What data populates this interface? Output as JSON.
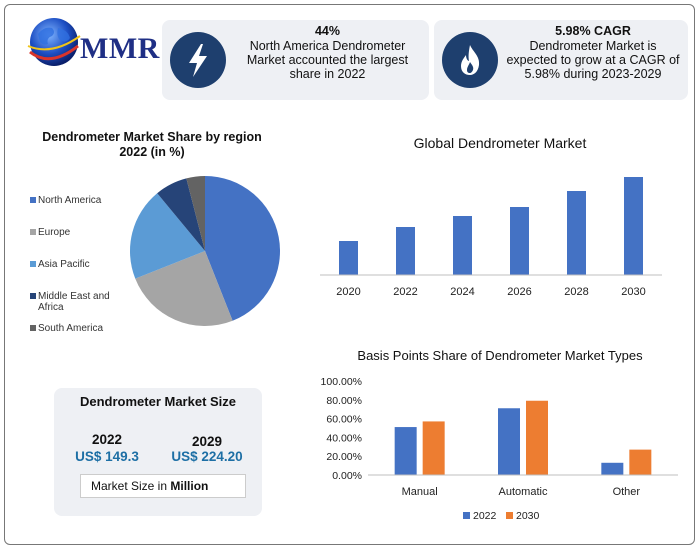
{
  "logo": {
    "text": "MMR",
    "icon": "globe-icon"
  },
  "stats": [
    {
      "icon": "lightning-bolt-icon",
      "value": "44%",
      "text": "North America Dendrometer Market accounted the largest share in 2022"
    },
    {
      "icon": "flame-icon",
      "value": "5.98% CAGR",
      "text": "Dendrometer Market is expected to grow at a CAGR of 5.98% during 2023-2029"
    }
  ],
  "market_size": {
    "title": "Dendrometer Market Size",
    "year1": "2022",
    "value1": "US$ 149.3",
    "year2": "2029",
    "value2": "US$ 224.20",
    "unit_prefix": "Market Size in ",
    "unit_bold": "Million"
  },
  "colors": {
    "blue": "#4472c4",
    "orange": "#ed7d31",
    "navy": "#1e3f6e"
  },
  "chart_data": [
    {
      "type": "pie",
      "title": "Dendrometer Market Share by region 2022 (in %)",
      "labels": [
        "North America",
        "Europe",
        "Asia Pacific",
        "Middle East and Africa",
        "South America"
      ],
      "values": [
        44,
        25,
        20,
        7,
        4
      ],
      "colors": [
        "#4472c4",
        "#a5a5a5",
        "#5b9bd5",
        "#264478",
        "#636363"
      ],
      "legend": "left"
    },
    {
      "type": "bar",
      "title": "Global Dendrometer Market",
      "categories": [
        "2020",
        "2022",
        "2024",
        "2026",
        "2028",
        "2030"
      ],
      "values": [
        34,
        48,
        59,
        68,
        84,
        98
      ],
      "color": "#4472c4",
      "ylim": [
        0,
        100
      ],
      "y_axis_visible": false,
      "grid": false
    },
    {
      "type": "bar",
      "title": "Basis Points Share of Dendrometer Market Types",
      "categories": [
        "Manual",
        "Automatic",
        "Other"
      ],
      "series": [
        {
          "name": "2022",
          "values": [
            51,
            71,
            13
          ],
          "color": "#4472c4"
        },
        {
          "name": "2030",
          "values": [
            57,
            79,
            27
          ],
          "color": "#ed7d31"
        }
      ],
      "ylim": [
        0,
        100
      ],
      "yticks": [
        "0.00%",
        "20.00%",
        "40.00%",
        "60.00%",
        "80.00%",
        "100.00%"
      ],
      "legend": "bottom",
      "grid": false
    }
  ]
}
